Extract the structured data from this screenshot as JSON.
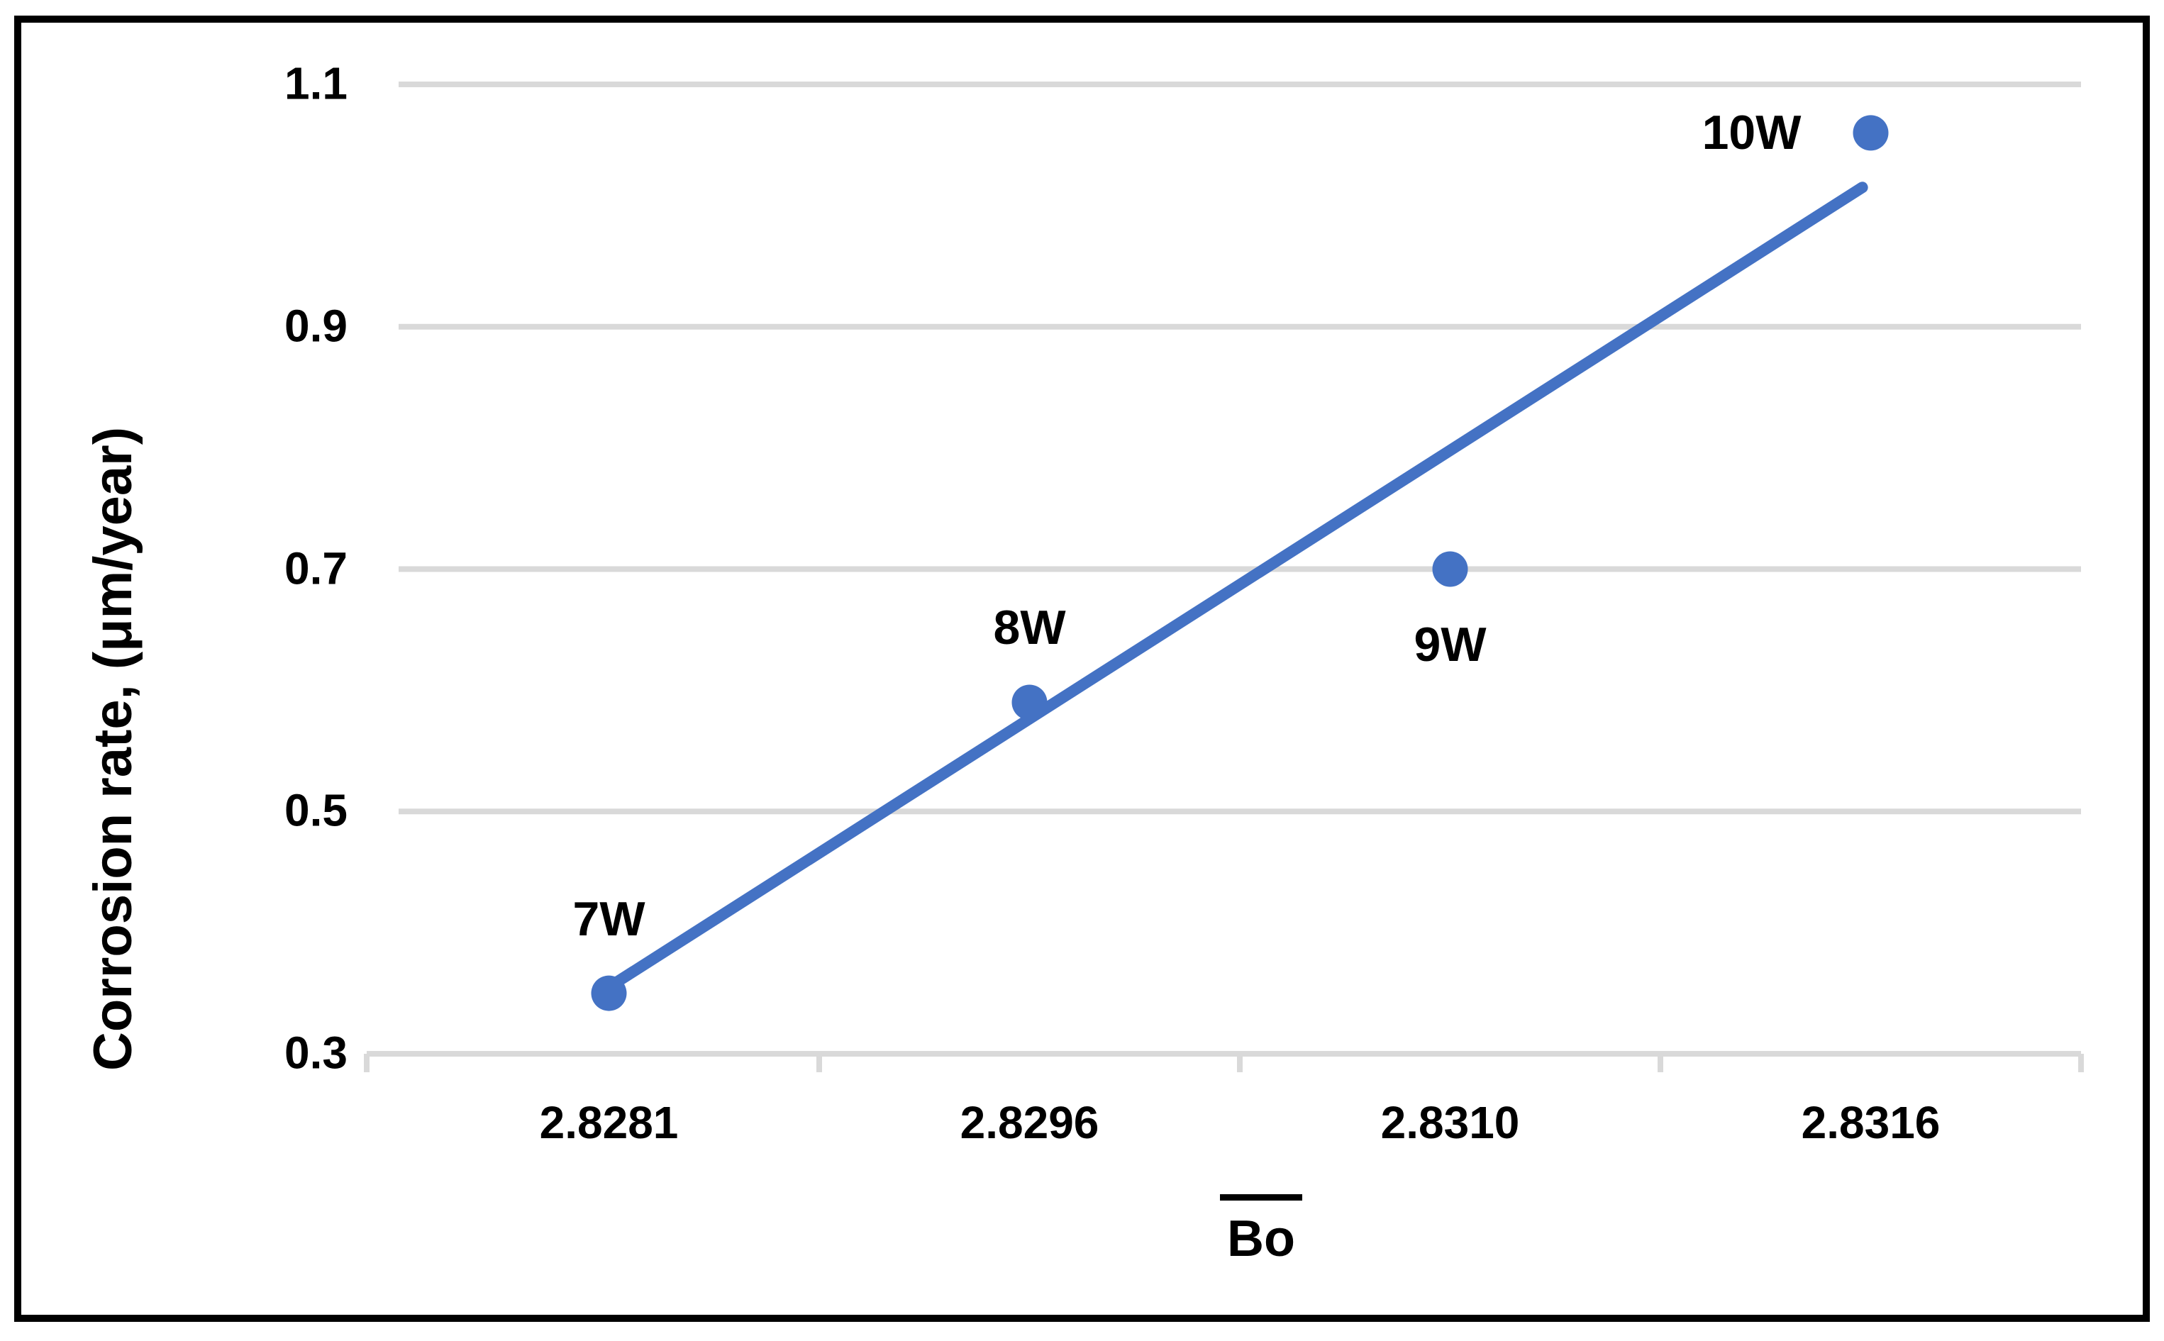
{
  "chart_data": {
    "type": "scatter",
    "title": "",
    "xlabel": "Bo",
    "xlabel_has_overline": true,
    "ylabel": "Corrosion rate, (μm/year)",
    "ylim": [
      0.3,
      1.1
    ],
    "grid": true,
    "legend": false,
    "x_tick_labels": [
      "2.8281",
      "2.8296",
      "2.8310",
      "2.8316"
    ],
    "y_ticks": [
      {
        "label": "1.1",
        "value": 1.1
      },
      {
        "label": "0.9",
        "value": 0.9
      },
      {
        "label": "0.7",
        "value": 0.7
      },
      {
        "label": "0.5",
        "value": 0.5
      },
      {
        "label": "0.3",
        "value": 0.3
      }
    ],
    "points": [
      {
        "label": "7W",
        "x": "2.8281",
        "y": 0.35,
        "label_pos": "above"
      },
      {
        "label": "8W",
        "x": "2.8296",
        "y": 0.59,
        "label_pos": "above"
      },
      {
        "label": "9W",
        "x": "2.8310",
        "y": 0.7,
        "label_pos": "below"
      },
      {
        "label": "10W",
        "x": "2.8316",
        "y": 1.06,
        "label_pos": "left"
      }
    ],
    "trendline": {
      "x1_index": 0,
      "y1": 0.355,
      "x2_index": 2.98,
      "y2": 1.015
    },
    "colors": {
      "series": "#4472C4",
      "gridline": "#D9D9D9",
      "tick": "#D9D9D9",
      "text": "#000000",
      "border": "#000000",
      "background": "#FFFFFF"
    }
  }
}
